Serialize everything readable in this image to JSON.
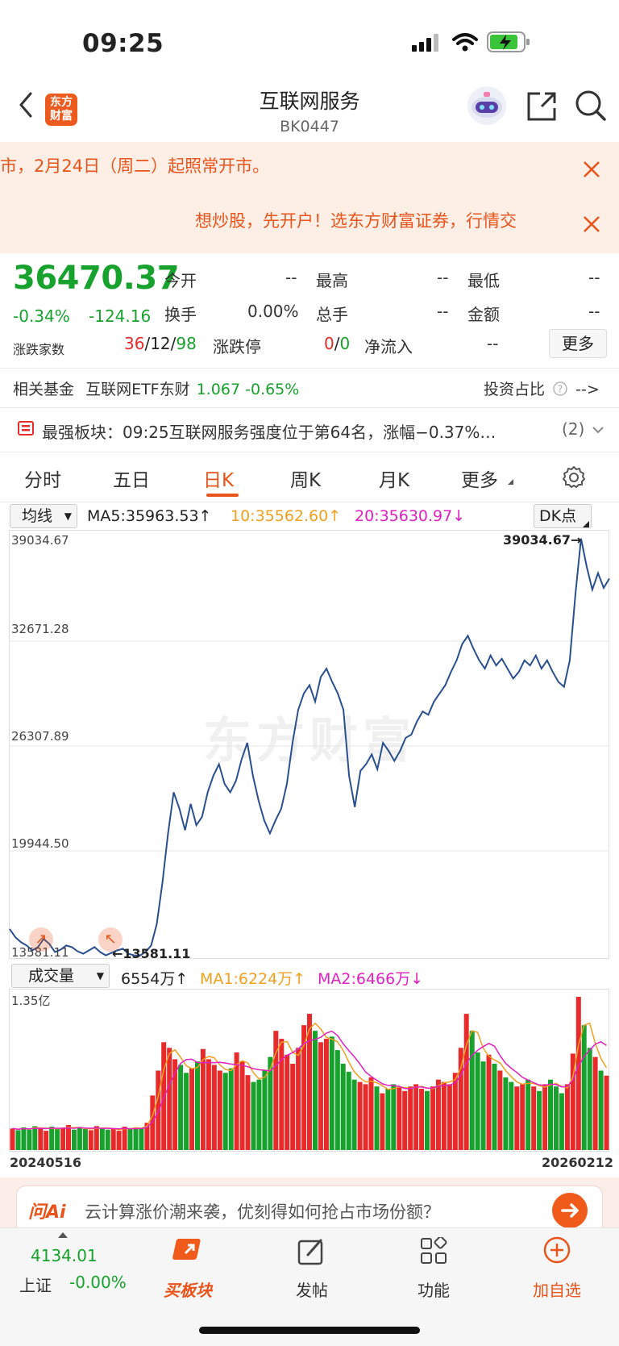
{
  "status_bar": {
    "time": "09:25"
  },
  "nav": {
    "title": "互联网服务",
    "code": "BK0447",
    "logo_text_1": "东方",
    "logo_text_2": "财富"
  },
  "notices": [
    {
      "text": "市，2月24日（周二）起照常开市。"
    },
    {
      "text": "想炒股，先开户！选东方财富证券，行情交"
    }
  ],
  "quote": {
    "price": "36470.37",
    "change": "-0.34%",
    "change_abs": "-124.16",
    "adv_dec_label": "涨跌家数",
    "adv": "36",
    "flat": "12",
    "dec": "98",
    "sep": "/",
    "limit_label": "涨跌停",
    "limit_up": "0",
    "limit_down": "0",
    "net_inflow_label": "净流入",
    "net_inflow": "--",
    "more_label": "更多",
    "fields": [
      {
        "label": "今开",
        "value": "--"
      },
      {
        "label": "最高",
        "value": "--"
      },
      {
        "label": "最低",
        "value": "--"
      },
      {
        "label": "换手",
        "value": "0.00%"
      },
      {
        "label": "总手",
        "value": "--"
      },
      {
        "label": "金额",
        "value": "--"
      }
    ]
  },
  "fund": {
    "label": "相关基金",
    "name": "互联网ETF东财",
    "price": "1.067",
    "change": "-0.65%",
    "ratio_label": "投资占比",
    "arrow": "-->"
  },
  "strongest": {
    "label": "最强板块：",
    "text": "09:25互联网服务强度位于第64名，涨幅−0.37%…",
    "count": "(2)"
  },
  "tabs": [
    {
      "label": "分时"
    },
    {
      "label": "五日"
    },
    {
      "label": "日K"
    },
    {
      "label": "周K"
    },
    {
      "label": "月K"
    },
    {
      "label": "更多"
    }
  ],
  "ma_bar": {
    "selector": "均线",
    "ma5": "MA5:35963.53↑",
    "ma10": "10:35562.60↑",
    "ma20": "20:35630.97↓",
    "dk": "DK点"
  },
  "price_chart": {
    "y_labels": [
      "39034.67",
      "32671.28",
      "26307.89",
      "19944.50",
      "13581.11"
    ],
    "high_label": "39034.67→",
    "low_label": "←13581.11",
    "watermark": "东方财富"
  },
  "vol_bar": {
    "selector": "成交量",
    "vol": "6554万↑",
    "ma1": "MA1:6224万↑",
    "ma2": "MA2:6466万↓",
    "max_label": "1.35亿"
  },
  "x_labels": {
    "start": "20240516",
    "end": "20260212"
  },
  "ai_banner": {
    "brand": "问Ai",
    "text": "云计算涨价潮来袭，优刻得如何抢占市场份额？"
  },
  "bottom_bar": {
    "index_value": "4134.01",
    "index_name": "上证",
    "index_change": "-0.00%",
    "items": [
      {
        "label": "买板块"
      },
      {
        "label": "发帖"
      },
      {
        "label": "功能"
      },
      {
        "label": "加自选"
      }
    ]
  },
  "colors": {
    "up": "#e82a2a",
    "down": "#16a22c",
    "accent": "#e8541a",
    "line": "#2a4f8f",
    "ma1": "#f0a020",
    "ma2": "#e020c0"
  },
  "chart_data": {
    "type": "line",
    "title": "",
    "xlabel": "",
    "ylabel": "",
    "x_range": [
      "20240516",
      "20260212"
    ],
    "ylim": [
      13581.11,
      39034.67
    ],
    "series": [
      {
        "values": [
          15200,
          14700,
          14400,
          14200,
          13900,
          14100,
          14600,
          14300,
          13800,
          13950,
          14200,
          14100,
          13850,
          13700,
          13900,
          14100,
          13800,
          13600,
          13750,
          13900,
          14000,
          13700,
          13600,
          13581,
          13800,
          14200,
          15500,
          18000,
          21000,
          23500,
          22500,
          21200,
          22800,
          21500,
          22000,
          23500,
          24500,
          25200,
          24000,
          23500,
          24200,
          25500,
          26500,
          24500,
          23000,
          21800,
          21000,
          21800,
          22500,
          24000,
          26500,
          28500,
          29500,
          30000,
          29000,
          30500,
          31000,
          30200,
          29500,
          28500,
          24500,
          22600,
          24800,
          25200,
          25800,
          24900,
          26500,
          26000,
          25400,
          26000,
          26800,
          27000,
          27800,
          28400,
          28200,
          29000,
          29500,
          30000,
          30800,
          31500,
          32500,
          33000,
          32200,
          31500,
          31000,
          31800,
          31200,
          31600,
          31000,
          30400,
          30800,
          31500,
          31200,
          31800,
          31000,
          31500,
          30800,
          30200,
          29900,
          31500,
          35500,
          38900,
          37200,
          35800,
          36800,
          35900,
          36470
        ]
      }
    ],
    "volume_series": [
      {
        "name": "成交量",
        "values": [
          1900,
          1750,
          2000,
          1800,
          2100,
          1950,
          1700,
          2050,
          1850,
          1900,
          2200,
          1800,
          2000,
          1850,
          1750,
          2100,
          1950,
          1800,
          1900,
          1700,
          2050,
          1850,
          2000,
          1900,
          2400,
          4800,
          7000,
          9500,
          9000,
          8000,
          7500,
          6800,
          7200,
          7800,
          8900,
          8000,
          7500,
          7000,
          6800,
          7200,
          8600,
          7800,
          6600,
          6000,
          6200,
          7000,
          8200,
          10500,
          9800,
          8400,
          7600,
          9000,
          11000,
          12000,
          10500,
          9500,
          9800,
          10000,
          8800,
          7600,
          6900,
          6200,
          6000,
          5800,
          6400,
          5600,
          5000,
          5400,
          5800,
          5500,
          5200,
          5600,
          5800,
          5400,
          5200,
          5600,
          6200,
          6000,
          5800,
          6800,
          9000,
          12000,
          10500,
          8600,
          7800,
          8400,
          7600,
          7000,
          6400,
          6000,
          5600,
          5800,
          6200,
          5600,
          5200,
          5800,
          6200,
          5600,
          5000,
          5800,
          8500,
          13500,
          11000,
          9000,
          8200,
          7000,
          6554
        ]
      }
    ]
  }
}
